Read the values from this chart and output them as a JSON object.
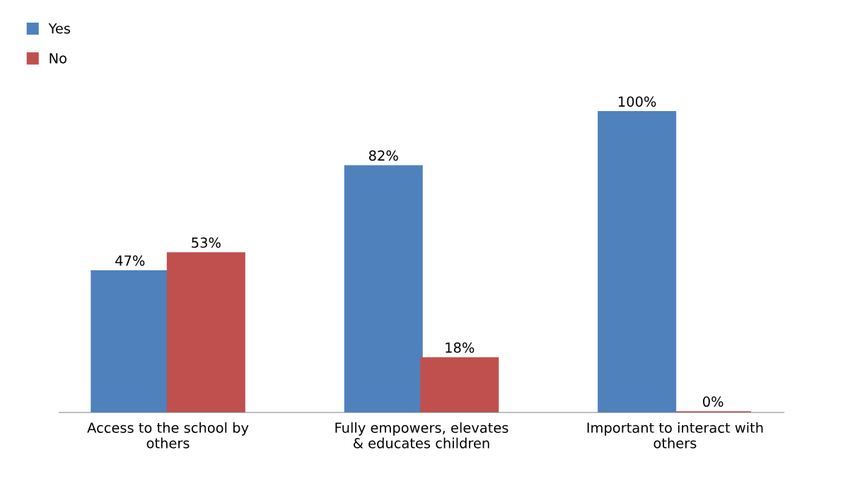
{
  "chart_data": {
    "type": "bar",
    "categories": [
      "Access to the school by\nothers",
      "Fully empowers, elevates\n& educates children",
      "Important to interact with\nothers"
    ],
    "series": [
      {
        "name": "Yes",
        "color": "#4f81bd",
        "values": [
          47,
          82,
          100
        ],
        "value_labels": [
          "47%",
          "82%",
          "100%"
        ]
      },
      {
        "name": "No",
        "color": "#c0504d",
        "values": [
          53,
          18,
          0
        ],
        "value_labels": [
          "53%",
          "18%",
          "0%"
        ]
      }
    ],
    "grid": false,
    "legend": "top left"
  }
}
